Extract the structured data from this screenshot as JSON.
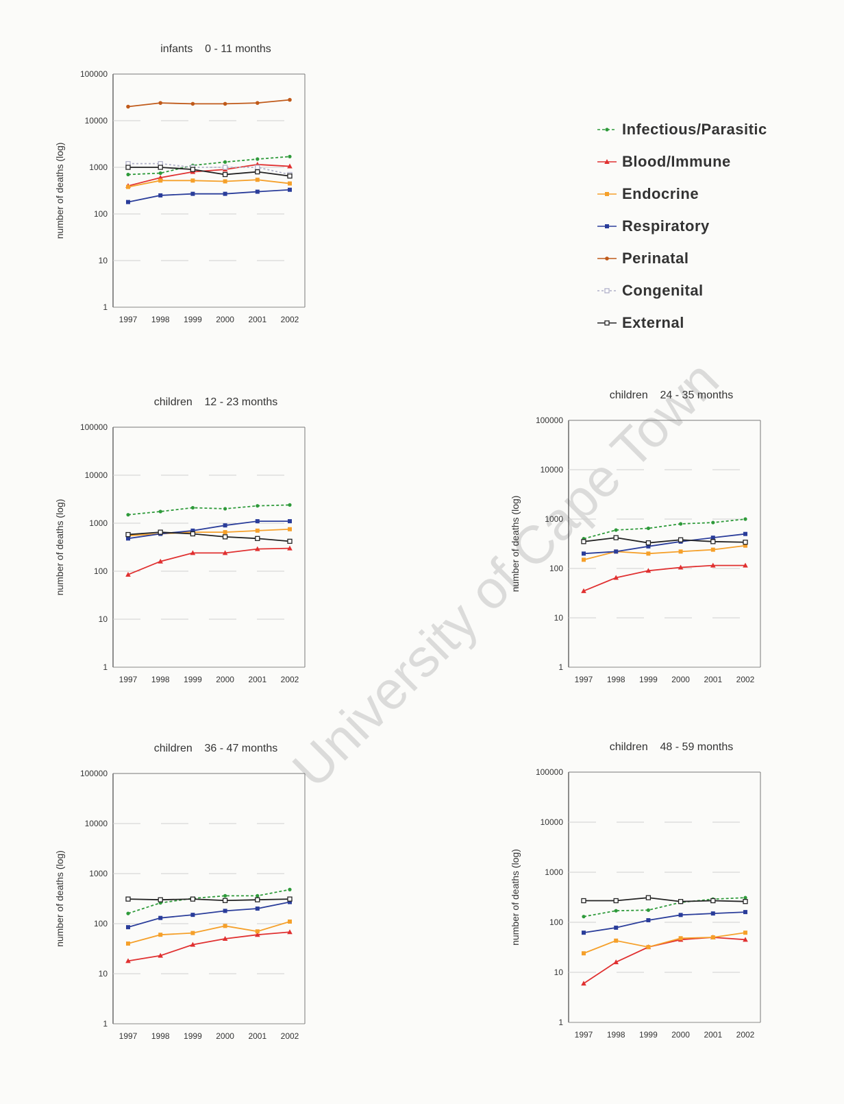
{
  "watermark": "University of Cape Town",
  "legend": [
    {
      "name": "Infectious/Parasitic",
      "color": "#2e9a3a",
      "marker": "circle",
      "dash": "4,3"
    },
    {
      "name": "Blood/Immune",
      "color": "#e03030",
      "marker": "triangle",
      "dash": ""
    },
    {
      "name": "Endocrine",
      "color": "#f5a02a",
      "marker": "square",
      "dash": ""
    },
    {
      "name": "Respiratory",
      "color": "#2a3d9a",
      "marker": "square",
      "dash": ""
    },
    {
      "name": "Perinatal",
      "color": "#c05a1a",
      "marker": "star",
      "dash": ""
    },
    {
      "name": "Congenital",
      "color": "#b0b0c8",
      "marker": "open-square",
      "dash": "3,3"
    },
    {
      "name": "External",
      "color": "#222222",
      "marker": "open-square",
      "dash": ""
    }
  ],
  "chart_data": [
    {
      "type": "line",
      "title": "infants    0 - 11 months",
      "ylabel": "number of deaths (log)",
      "yscale": "log",
      "ylim": [
        1,
        100000
      ],
      "yticks": [
        "1",
        "10",
        "100",
        "1000",
        "10000",
        "100000"
      ],
      "categories": [
        "1997",
        "1998",
        "1999",
        "2000",
        "2001",
        "2002"
      ],
      "series": [
        {
          "name": "Infectious/Parasitic",
          "values": [
            700,
            750,
            1100,
            1300,
            1500,
            1700
          ]
        },
        {
          "name": "Blood/Immune",
          "values": [
            400,
            600,
            800,
            900,
            1150,
            1050
          ]
        },
        {
          "name": "Endocrine",
          "values": [
            380,
            520,
            520,
            500,
            540,
            450
          ]
        },
        {
          "name": "Respiratory",
          "values": [
            180,
            250,
            270,
            270,
            300,
            330
          ]
        },
        {
          "name": "Perinatal",
          "values": [
            20000,
            24000,
            23000,
            23000,
            24000,
            28000
          ]
        },
        {
          "name": "Congenital",
          "values": [
            1200,
            1200,
            1000,
            1000,
            1000,
            700
          ]
        },
        {
          "name": "External",
          "values": [
            1000,
            1000,
            900,
            700,
            800,
            650
          ]
        }
      ]
    },
    {
      "type": "line",
      "title": "children    12 - 23 months",
      "ylabel": "number of deaths (log)",
      "yscale": "log",
      "ylim": [
        1,
        100000
      ],
      "yticks": [
        "1",
        "10",
        "100",
        "1000",
        "10000",
        "100000"
      ],
      "categories": [
        "1997",
        "1998",
        "1999",
        "2000",
        "2001",
        "2002"
      ],
      "series": [
        {
          "name": "Infectious/Parasitic",
          "values": [
            1500,
            1750,
            2100,
            2000,
            2300,
            2400
          ]
        },
        {
          "name": "Blood/Immune",
          "values": [
            85,
            160,
            240,
            240,
            290,
            300
          ]
        },
        {
          "name": "Endocrine",
          "values": [
            550,
            600,
            650,
            650,
            700,
            750
          ]
        },
        {
          "name": "Respiratory",
          "values": [
            480,
            600,
            700,
            900,
            1100,
            1100
          ]
        },
        {
          "name": "External",
          "values": [
            580,
            650,
            600,
            520,
            480,
            420
          ]
        }
      ]
    },
    {
      "type": "line",
      "title": "children    24 - 35 months",
      "ylabel": "number of deaths (log)",
      "yscale": "log",
      "ylim": [
        1,
        100000
      ],
      "yticks": [
        "1",
        "10",
        "100",
        "1000",
        "10000",
        "100000"
      ],
      "categories": [
        "1997",
        "1998",
        "1999",
        "2000",
        "2001",
        "2002"
      ],
      "series": [
        {
          "name": "Infectious/Parasitic",
          "values": [
            400,
            600,
            650,
            800,
            850,
            1000
          ]
        },
        {
          "name": "Blood/Immune",
          "values": [
            35,
            65,
            90,
            105,
            115,
            115
          ]
        },
        {
          "name": "Endocrine",
          "values": [
            150,
            220,
            200,
            220,
            240,
            290
          ]
        },
        {
          "name": "Respiratory",
          "values": [
            200,
            220,
            280,
            350,
            420,
            500
          ]
        },
        {
          "name": "External",
          "values": [
            350,
            420,
            330,
            380,
            350,
            340
          ]
        }
      ]
    },
    {
      "type": "line",
      "title": "children    36 - 47 months",
      "ylabel": "number of deaths (log)",
      "yscale": "log",
      "ylim": [
        1,
        100000
      ],
      "yticks": [
        "1",
        "10",
        "100",
        "1000",
        "10000",
        "100000"
      ],
      "categories": [
        "1997",
        "1998",
        "1999",
        "2000",
        "2001",
        "2002"
      ],
      "series": [
        {
          "name": "Infectious/Parasitic",
          "values": [
            160,
            260,
            320,
            360,
            360,
            480
          ]
        },
        {
          "name": "Blood/Immune",
          "values": [
            18,
            23,
            38,
            50,
            60,
            68
          ]
        },
        {
          "name": "Endocrine",
          "values": [
            40,
            60,
            65,
            90,
            70,
            110
          ]
        },
        {
          "name": "Respiratory",
          "values": [
            85,
            130,
            150,
            180,
            200,
            270
          ]
        },
        {
          "name": "External",
          "values": [
            310,
            300,
            310,
            290,
            300,
            310
          ]
        }
      ]
    },
    {
      "type": "line",
      "title": "children    48 - 59 months",
      "ylabel": "number of deaths (log)",
      "yscale": "log",
      "ylim": [
        1,
        100000
      ],
      "yticks": [
        "1",
        "10",
        "100",
        "1000",
        "10000",
        "100000"
      ],
      "categories": [
        "1997",
        "1998",
        "1999",
        "2000",
        "2001",
        "2002"
      ],
      "series": [
        {
          "name": "Infectious/Parasitic",
          "values": [
            130,
            170,
            175,
            250,
            290,
            310
          ]
        },
        {
          "name": "Blood/Immune",
          "values": [
            6,
            16,
            32,
            45,
            50,
            45
          ]
        },
        {
          "name": "Endocrine",
          "values": [
            24,
            43,
            32,
            48,
            50,
            62
          ]
        },
        {
          "name": "Respiratory",
          "values": [
            62,
            78,
            110,
            140,
            150,
            160
          ]
        },
        {
          "name": "External",
          "values": [
            270,
            270,
            310,
            260,
            270,
            260
          ]
        }
      ]
    }
  ]
}
